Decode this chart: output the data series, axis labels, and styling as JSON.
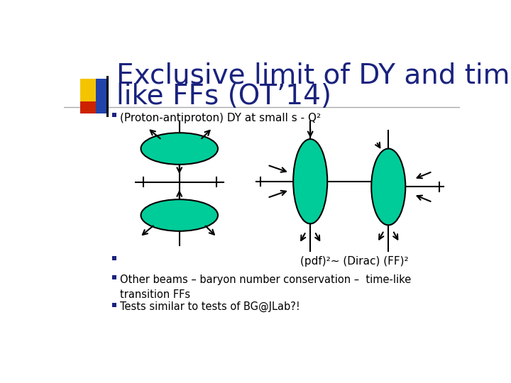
{
  "title_line1": "Exclusive limit of DY and time-",
  "title_line2": "like FFs (OT’14)",
  "title_color": "#1a237e",
  "title_fontsize": 28,
  "background_color": "#ffffff",
  "bullet_square_color": "#1a237e",
  "teal_color": "#00cc99",
  "teal_edge_color": "#000000",
  "bullet1": "(Proton-antiproton) DY at small s - Q²",
  "bullet2_label": "(pdf)²~ (Dirac) (FF)²",
  "bullet3": "Other beams – baryon number conservation –  time-like\ntransition FFs",
  "bullet4": "Tests similar to tests of BG@JLab?!",
  "accent_yellow": "#f5c400",
  "accent_red": "#cc2200",
  "accent_blue": "#2244aa"
}
